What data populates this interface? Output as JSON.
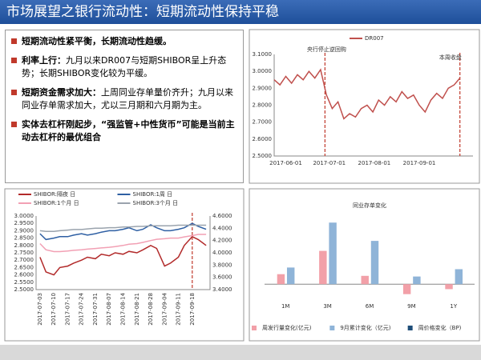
{
  "title": "市场展望之银行流动性：短期流动性保持平稳",
  "bullets": [
    {
      "head": "短期流动性紧平衡，长期流动性趋缓。"
    },
    {
      "head": "利率上行：",
      "text": "九月以来DR007与短期SHIBOR呈上升态势；长期SHIBOR变化较为平缓。"
    },
    {
      "head": "短期资金需求加大：",
      "text": "上周同业存单量价齐升；九月以来同业存单需求加大，尤以三月期和六月期为主。"
    },
    {
      "head": "实体去杠杆刚起步，“强监管+中性货币”可能是当前主动去杠杆的最优组合"
    }
  ],
  "chart_data": [
    {
      "type": "line",
      "x": [
        "2017-05-24",
        "2017-05-28",
        "2017-06-01",
        "2017-06-05",
        "2017-06-09",
        "2017-06-13",
        "2017-06-17",
        "2017-06-21",
        "2017-06-25",
        "2017-06-29",
        "2017-07-03",
        "2017-07-07",
        "2017-07-11",
        "2017-07-15",
        "2017-07-19",
        "2017-07-23",
        "2017-07-27",
        "2017-07-31",
        "2017-08-04",
        "2017-08-08",
        "2017-08-12",
        "2017-08-16",
        "2017-08-20",
        "2017-08-24",
        "2017-08-28",
        "2017-09-01",
        "2017-09-05",
        "2017-09-09",
        "2017-09-13",
        "2017-09-17",
        "2017-09-21",
        "2017-09-25",
        "2017-09-29"
      ],
      "series": [
        {
          "name": "DR007",
          "color": "#c0504d",
          "values": [
            2.95,
            2.92,
            2.97,
            2.93,
            2.98,
            2.95,
            3.0,
            2.96,
            3.01,
            2.86,
            2.78,
            2.82,
            2.72,
            2.75,
            2.73,
            2.78,
            2.8,
            2.76,
            2.83,
            2.8,
            2.85,
            2.82,
            2.88,
            2.84,
            2.86,
            2.8,
            2.76,
            2.83,
            2.87,
            2.84,
            2.9,
            2.92,
            2.96
          ]
        }
      ],
      "xlim": [
        "2017-05-24",
        "2017-10-08"
      ],
      "xticks": [
        "2017-06-01",
        "2017-07-01",
        "2017-08-01",
        "2017-09-01"
      ],
      "ylim": [
        2.5,
        3.1
      ],
      "yticks": [
        {
          "value": 2.5,
          "label": "2.5000"
        },
        {
          "value": 2.6,
          "label": "2.6000"
        },
        {
          "value": 2.7,
          "label": "2.7000"
        },
        {
          "value": 2.8,
          "label": "2.8000"
        },
        {
          "value": 2.9,
          "label": "2.9000"
        },
        {
          "value": 3.0,
          "label": "3.0000"
        },
        {
          "value": 3.1,
          "label": "3.1000"
        }
      ],
      "annotations": [
        {
          "text": "央行停止逆回购",
          "x": "2017-06-28"
        },
        {
          "text": "本周收盘",
          "x": "2017-09-29"
        }
      ],
      "legend": "top"
    },
    {
      "type": "line",
      "x": [
        "2017-07-03",
        "2017-07-06",
        "2017-07-10",
        "2017-07-13",
        "2017-07-17",
        "2017-07-20",
        "2017-07-24",
        "2017-07-27",
        "2017-07-31",
        "2017-08-03",
        "2017-08-07",
        "2017-08-10",
        "2017-08-14",
        "2017-08-17",
        "2017-08-21",
        "2017-08-24",
        "2017-08-28",
        "2017-08-31",
        "2017-09-04",
        "2017-09-07",
        "2017-09-11",
        "2017-09-14",
        "2017-09-18",
        "2017-09-21",
        "2017-09-25"
      ],
      "series": [
        {
          "name": "SHIBOR:隔夜 日",
          "color": "#b22a2a",
          "values": [
            2.72,
            2.62,
            2.6,
            2.65,
            2.66,
            2.68,
            2.7,
            2.72,
            2.71,
            2.74,
            2.73,
            2.75,
            2.74,
            2.76,
            2.75,
            2.77,
            2.8,
            2.78,
            2.66,
            2.68,
            2.72,
            2.8,
            2.86,
            2.84,
            2.8
          ]
        },
        {
          "name": "SHIBOR:1周 日",
          "color": "#2e5fa3",
          "values": [
            2.88,
            2.84,
            2.85,
            2.86,
            2.86,
            2.87,
            2.88,
            2.87,
            2.88,
            2.89,
            2.9,
            2.9,
            2.91,
            2.92,
            2.9,
            2.91,
            2.94,
            2.92,
            2.9,
            2.9,
            2.91,
            2.92,
            2.95,
            2.93,
            2.91
          ]
        },
        {
          "name": "SHIBOR:1个月 日",
          "color": "#f2a0b4",
          "axis": "y2",
          "values": [
            4.15,
            4.05,
            4.02,
            4.02,
            4.03,
            4.04,
            4.05,
            4.06,
            4.07,
            4.08,
            4.09,
            4.1,
            4.12,
            4.14,
            4.15,
            4.17,
            4.2,
            4.22,
            4.23,
            4.24,
            4.24,
            4.26,
            4.28,
            4.3,
            4.3
          ]
        },
        {
          "name": "SHIBOR:3个月 日",
          "color": "#9aa3ad",
          "axis": "y2",
          "values": [
            4.36,
            4.35,
            4.35,
            4.36,
            4.37,
            4.38,
            4.38,
            4.39,
            4.4,
            4.4,
            4.41,
            4.41,
            4.42,
            4.42,
            4.43,
            4.43,
            4.44,
            4.44,
            4.44,
            4.44,
            4.45,
            4.45,
            4.45,
            4.45,
            4.45
          ]
        }
      ],
      "xlim": [
        "2017-07-01",
        "2017-09-27"
      ],
      "xticks": [
        "2017-07-03",
        "2017-07-10",
        "2017-07-17",
        "2017-07-24",
        "2017-07-31",
        "2017-08-07",
        "2017-08-14",
        "2017-08-21",
        "2017-08-28",
        "2017-09-04",
        "2017-09-11",
        "2017-09-18"
      ],
      "ylim": [
        2.5,
        3.0
      ],
      "yticks": [
        {
          "value": 2.5,
          "label": "2.5000"
        },
        {
          "value": 2.55,
          "label": "2.5500"
        },
        {
          "value": 2.6,
          "label": "2.6000"
        },
        {
          "value": 2.65,
          "label": "2.6500"
        },
        {
          "value": 2.7,
          "label": "2.7000"
        },
        {
          "value": 2.75,
          "label": "2.7500"
        },
        {
          "value": 2.8,
          "label": "2.8000"
        },
        {
          "value": 2.85,
          "label": "2.8500"
        },
        {
          "value": 2.9,
          "label": "2.9000"
        },
        {
          "value": 2.95,
          "label": "2.9500"
        },
        {
          "value": 3.0,
          "label": "3.0000"
        }
      ],
      "y2lim": [
        3.4,
        4.6
      ],
      "y2ticks": [
        {
          "value": 3.4,
          "label": "3.4000"
        },
        {
          "value": 3.6,
          "label": "3.6000"
        },
        {
          "value": 3.8,
          "label": "3.8000"
        },
        {
          "value": 4.0,
          "label": "4.0000"
        },
        {
          "value": 4.2,
          "label": "4.2000"
        },
        {
          "value": 4.4,
          "label": "4.4000"
        },
        {
          "value": 4.6,
          "label": "4.6000"
        }
      ],
      "vline": "2017-09-18",
      "legend": "top"
    },
    {
      "type": "bar",
      "title": "同业存单变化",
      "categories": [
        "1M",
        "3M",
        "6M",
        "9M",
        "1Y"
      ],
      "series": [
        {
          "name": "周发行量变化(亿元)",
          "color": "#f2a0a8",
          "values": [
            300,
            1000,
            250,
            -300,
            -150
          ]
        },
        {
          "name": "9月累计变化（亿元)",
          "color": "#8fb4d8",
          "values": [
            500,
            1850,
            1300,
            230,
            450
          ]
        },
        {
          "name": "周价格变化（BP)",
          "color": "#1f4e79",
          "values": [
            null,
            null,
            null,
            null,
            null
          ]
        }
      ],
      "ylim": [
        -500,
        2000
      ],
      "legend": "bottom"
    }
  ]
}
